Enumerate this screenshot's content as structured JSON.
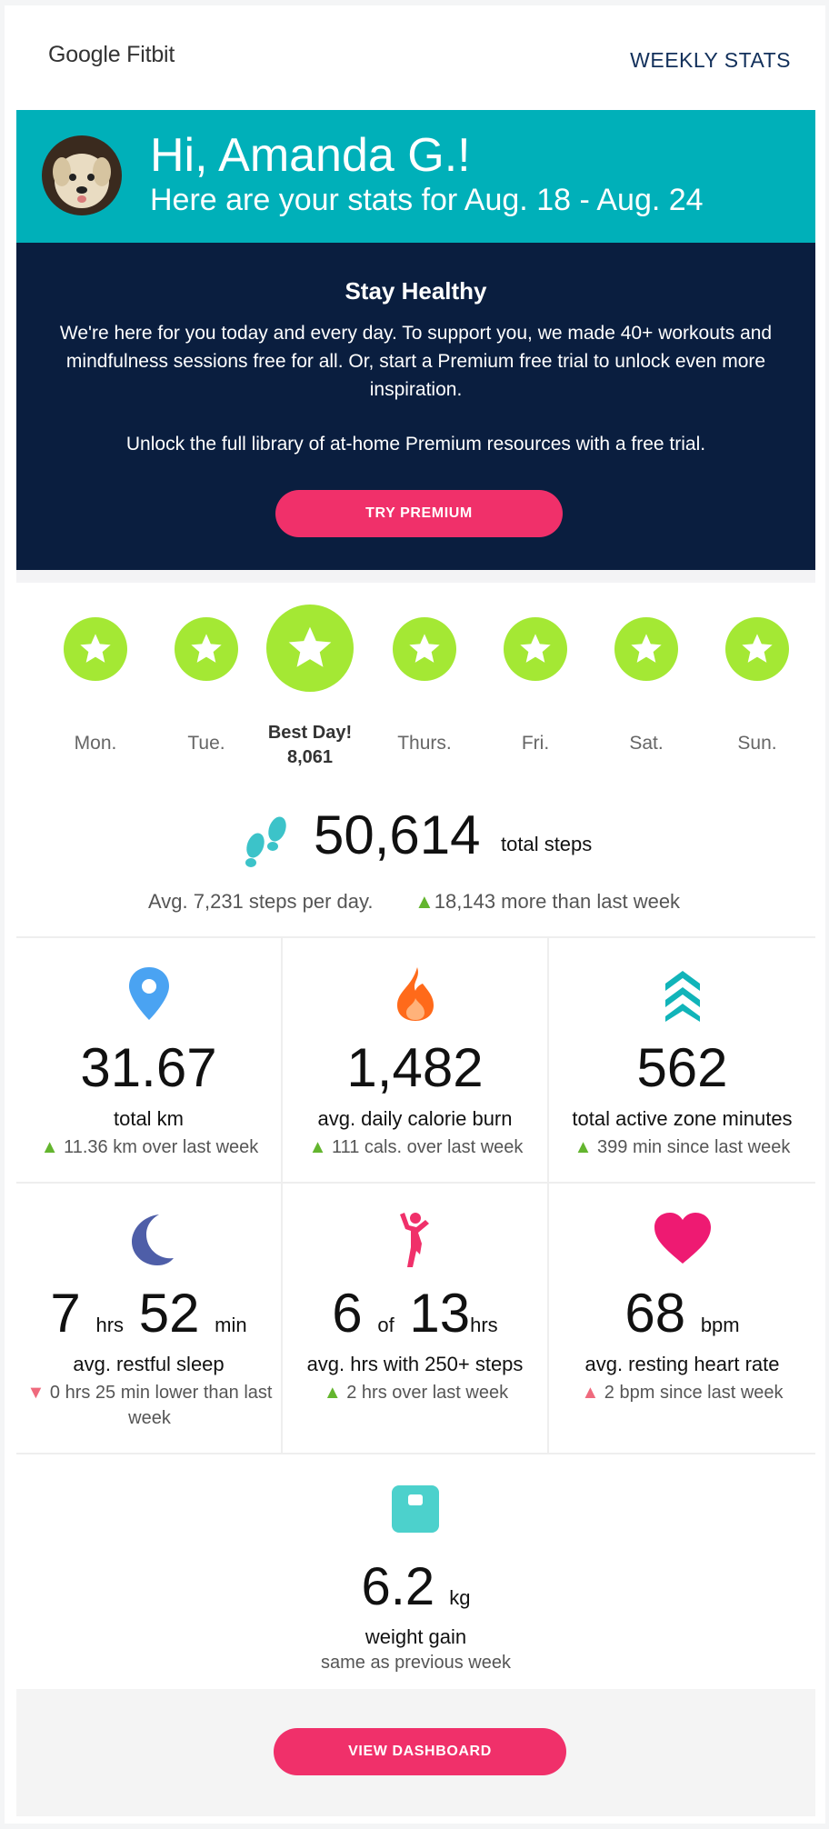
{
  "header": {
    "logo": "Google Fitbit",
    "weekly_stats": "WEEKLY STATS"
  },
  "hero": {
    "greeting": "Hi, Amanda G.!",
    "subtitle": "Here are your stats for Aug. 18 - Aug. 24"
  },
  "promo": {
    "title": "Stay Healthy",
    "body": "We're here for you today and every day. To support you, we made 40+ workouts and mindfulness sessions free for all. Or, start a Premium free trial to unlock even more inspiration.",
    "unlock": "Unlock the full library of at-home Premium resources with a free trial.",
    "button": "TRY PREMIUM"
  },
  "days": [
    {
      "label": "Mon."
    },
    {
      "label": "Tue."
    },
    {
      "label": "Best Day!",
      "value": "8,061"
    },
    {
      "label": "Thurs."
    },
    {
      "label": "Fri."
    },
    {
      "label": "Sat."
    },
    {
      "label": "Sun."
    }
  ],
  "steps": {
    "total": "50,614",
    "unit": "total steps",
    "avg": "Avg. 7,231 steps per day.",
    "delta": "18,143 more than last week"
  },
  "metrics": [
    {
      "value": "31.67",
      "label": "total km",
      "delta": "11.36 km over last week",
      "icon": "location-pin-icon"
    },
    {
      "value": "1,482",
      "label": "avg. daily calorie burn",
      "delta": "111 cals. over last week",
      "icon": "flame-icon"
    },
    {
      "value": "562",
      "label": "total active zone minutes",
      "delta": "399 min since last week",
      "icon": "chevrons-up-icon"
    },
    {
      "value_hrs": "7",
      "unit_hrs": "hrs",
      "value_min": "52",
      "unit_min": "min",
      "label": "avg. restful sleep",
      "delta": "0 hrs 25 min lower than last week",
      "icon": "moon-icon"
    },
    {
      "value_a": "6",
      "of": "of",
      "value_b": "13",
      "unit": "hrs",
      "label": "avg. hrs with 250+ steps",
      "delta": "2 hrs over last week",
      "icon": "person-icon"
    },
    {
      "value": "68",
      "unit": "bpm",
      "label": "avg. resting heart rate",
      "delta": "2 bpm since last week",
      "icon": "heart-icon"
    }
  ],
  "weight": {
    "value": "6.2",
    "unit": "kg",
    "label": "weight gain",
    "delta": "same as previous week",
    "icon": "scale-icon"
  },
  "footer": {
    "button": "VIEW DASHBOARD"
  },
  "colors": {
    "teal": "#00b0b9",
    "navy": "#0a1e3f",
    "pink": "#f0306a",
    "lime": "#a4e834"
  }
}
